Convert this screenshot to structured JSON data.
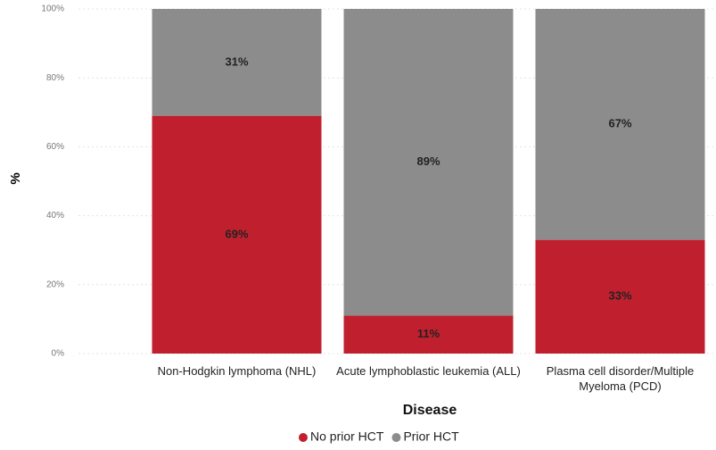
{
  "chart_data": {
    "type": "stacked_bar",
    "x_label": "Disease",
    "y_label": "%",
    "categories": [
      "Non-Hodgkin lymphoma (NHL)",
      "Acute lymphoblastic leukemia (ALL)",
      "Plasma cell disorder/Multiple Myeloma (PCD)"
    ],
    "series": [
      {
        "name": "No prior HCT",
        "color": "#c0202e",
        "values": [
          69,
          11,
          33
        ],
        "value_labels": [
          "69%",
          "11%",
          "33%"
        ]
      },
      {
        "name": "Prior HCT",
        "color": "#8c8c8c",
        "values": [
          31,
          89,
          67
        ],
        "value_labels": [
          "31%",
          "89%",
          "67%"
        ]
      }
    ],
    "ylim": [
      0,
      100
    ],
    "yticks": [
      {
        "value": 0,
        "label": "0%"
      },
      {
        "value": 20,
        "label": "20%"
      },
      {
        "value": 40,
        "label": "40%"
      },
      {
        "value": 60,
        "label": "60%"
      },
      {
        "value": 80,
        "label": "80%"
      },
      {
        "value": 100,
        "label": "100%"
      }
    ],
    "grid": true,
    "legend": "bottom"
  }
}
